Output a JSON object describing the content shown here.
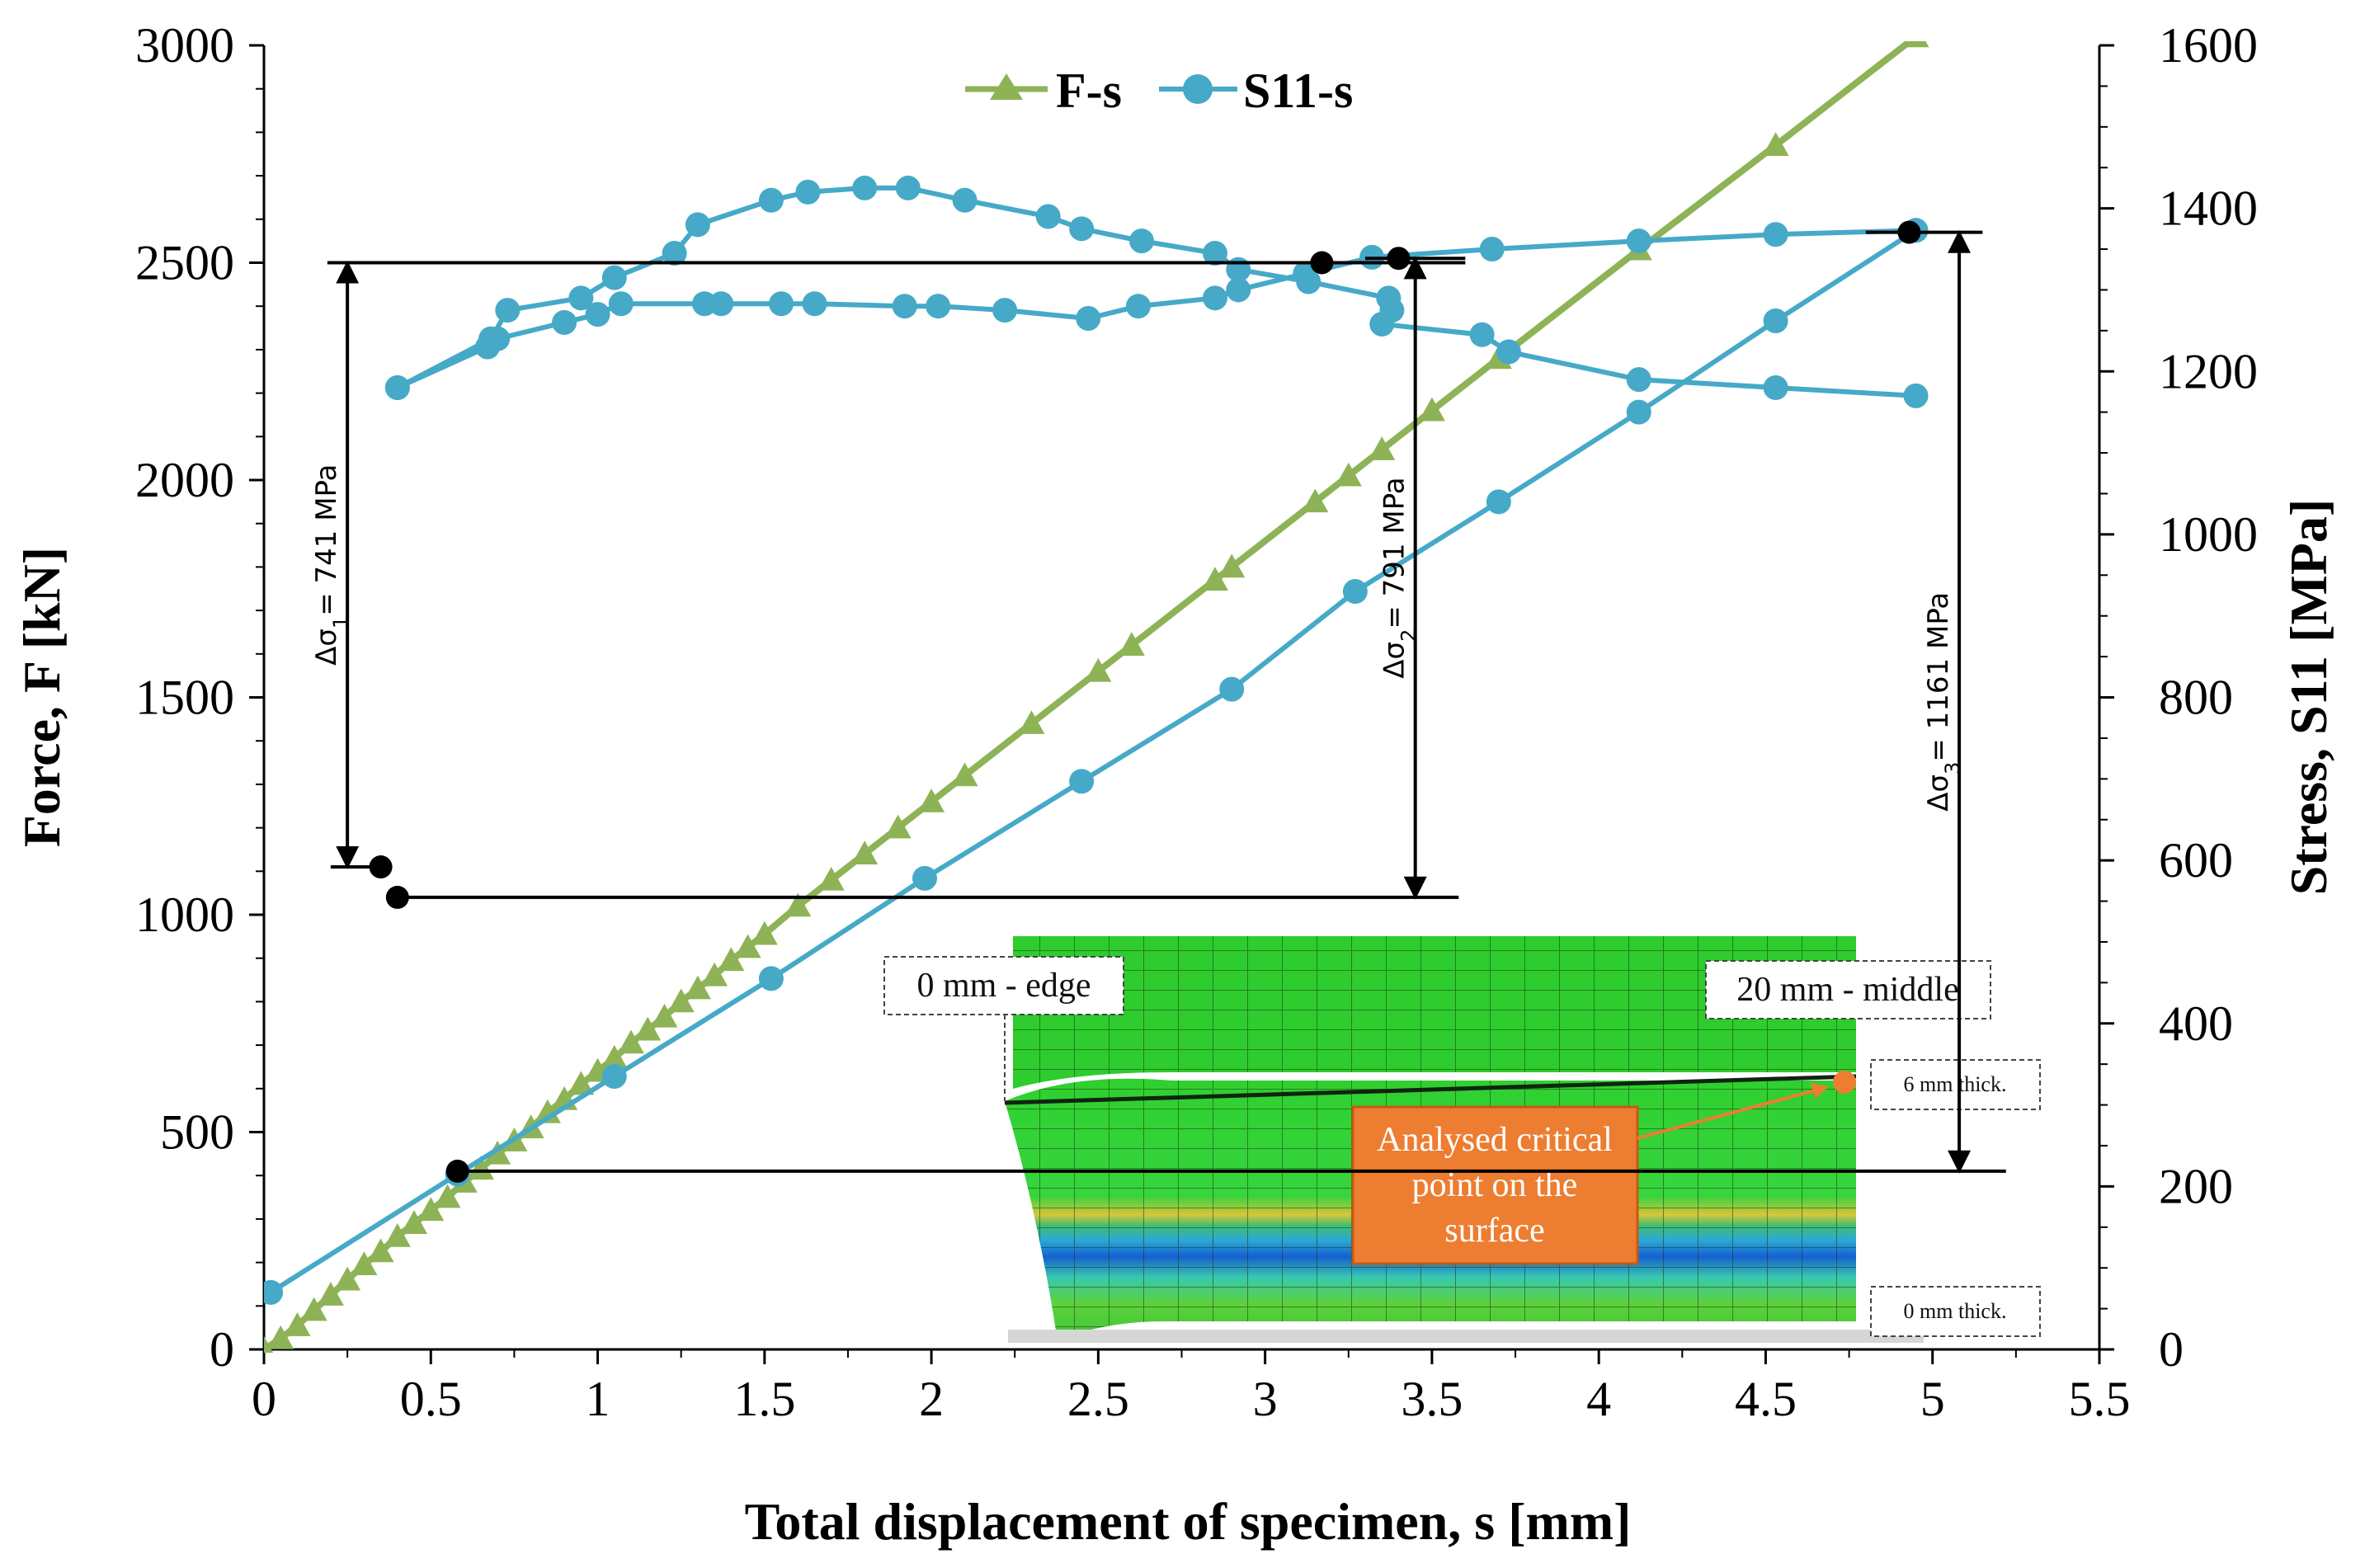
{
  "chart_data": {
    "type": "line",
    "title": "",
    "xlabel": "Total displacement of specimen,  s [mm]",
    "ylabel": "Force, F [kN]",
    "y2label": "Stress, S11 [MPa]",
    "xlim": [
      0,
      5.5
    ],
    "ylim": [
      0,
      3000
    ],
    "y2lim": [
      0,
      1600
    ],
    "x_ticks": [
      "0",
      "0.5",
      "1",
      "1.5",
      "2",
      "2.5",
      "3",
      "3.5",
      "4",
      "4.5",
      "5",
      "5.5"
    ],
    "y_ticks": [
      "0",
      "500",
      "1000",
      "1500",
      "2000",
      "2500",
      "3000"
    ],
    "y2_ticks": [
      "0",
      "200",
      "400",
      "600",
      "800",
      "1000",
      "1200",
      "1400",
      "1600"
    ],
    "legend_position": "top-center",
    "colors": {
      "fs": "#8DB356",
      "s11": "#46A9C8",
      "annot": "#000000",
      "critical": "#ED7D31"
    },
    "series": [
      {
        "name": "F-s",
        "axis": "left",
        "marker": "triangle",
        "x": [
          0,
          0.05,
          0.1,
          0.15,
          0.2,
          0.25,
          0.3,
          0.35,
          0.4,
          0.45,
          0.5,
          0.55,
          0.6,
          0.65,
          0.7,
          0.75,
          0.8,
          0.85,
          0.9,
          0.95,
          1.0,
          1.05,
          1.1,
          1.15,
          1.2,
          1.25,
          1.3,
          1.35,
          1.4,
          1.45,
          1.5,
          1.6,
          1.7,
          1.8,
          1.9,
          2.0,
          2.1,
          2.3,
          2.5,
          2.6,
          2.85,
          2.9,
          3.15,
          3.25,
          3.35,
          3.5,
          3.7,
          4.12,
          4.53,
          4.95
        ],
        "values": [
          0,
          25,
          55,
          90,
          125,
          160,
          195,
          225,
          260,
          290,
          320,
          350,
          385,
          415,
          450,
          480,
          510,
          545,
          575,
          610,
          640,
          670,
          705,
          735,
          765,
          800,
          830,
          860,
          895,
          925,
          955,
          1020,
          1080,
          1140,
          1200,
          1260,
          1320,
          1440,
          1560,
          1620,
          1770,
          1800,
          1950,
          2010,
          2070,
          2160,
          2280,
          2530,
          2770,
          3020
        ]
      },
      {
        "name": "S11-s",
        "axis": "right",
        "marker": "circle",
        "x": [
          0.02,
          0.58,
          1.05,
          1.52,
          1.98,
          2.45,
          2.9,
          3.27,
          3.7,
          4.12,
          4.53,
          4.95,
          4.95,
          4.53,
          4.12,
          3.68,
          3.32,
          3.12,
          2.92,
          2.85,
          2.62,
          2.47,
          2.22,
          2.02,
          1.92,
          1.65,
          1.55,
          1.37,
          1.32,
          1.07,
          1.0,
          0.9,
          0.7,
          0.67,
          0.4,
          0.4,
          0.68,
          0.73,
          0.95,
          1.05,
          1.23,
          1.3,
          1.52,
          1.63,
          1.8,
          1.93,
          2.1,
          2.35,
          2.45,
          2.63,
          2.85,
          2.92,
          3.13,
          3.37,
          3.38,
          3.35,
          3.65,
          3.73,
          4.12,
          4.53,
          4.95
        ],
        "values": [
          70,
          215,
          335,
          455,
          578,
          697,
          810,
          930,
          1040,
          1150,
          1262,
          1373,
          1373,
          1368,
          1360,
          1350,
          1340,
          1320,
          1300,
          1290,
          1280,
          1265,
          1275,
          1280,
          1280,
          1283,
          1283,
          1283,
          1283,
          1283,
          1270,
          1260,
          1240,
          1230,
          1180,
          1180,
          1240,
          1275,
          1290,
          1315,
          1345,
          1380,
          1410,
          1420,
          1425,
          1425,
          1410,
          1390,
          1375,
          1360,
          1345,
          1325,
          1310,
          1290,
          1275,
          1258,
          1245,
          1224,
          1190,
          1180,
          1170
        ]
      }
    ],
    "annotations": [
      {
        "label": "Δσ1= 741 MPa",
        "text_main": "Δσ",
        "text_sub": "1",
        "text_rest": "= 741 MPa",
        "x": 0.25,
        "y_from": 1110,
        "y_to": 2500
      },
      {
        "label": "Δσ2= 791 MPa",
        "text_main": "Δσ",
        "text_sub": "2",
        "text_rest": "= 791 MPa",
        "x": 3.45,
        "y_from": 1040,
        "y_to": 2510
      },
      {
        "label": "Δσ3= 1161 MPa",
        "text_main": "Δσ",
        "text_sub": "3",
        "text_rest": "= 1161 MPa",
        "x": 5.08,
        "y_from": 410,
        "y_to": 2570
      }
    ],
    "inset": {
      "edge_label": "0 mm - edge",
      "middle_label": "20 mm - middle",
      "thick6_label": "6 mm thick.",
      "thick0_label": "0 mm thick.",
      "critical_lines": [
        "Analysed critical",
        "point on the",
        "surface"
      ]
    }
  }
}
